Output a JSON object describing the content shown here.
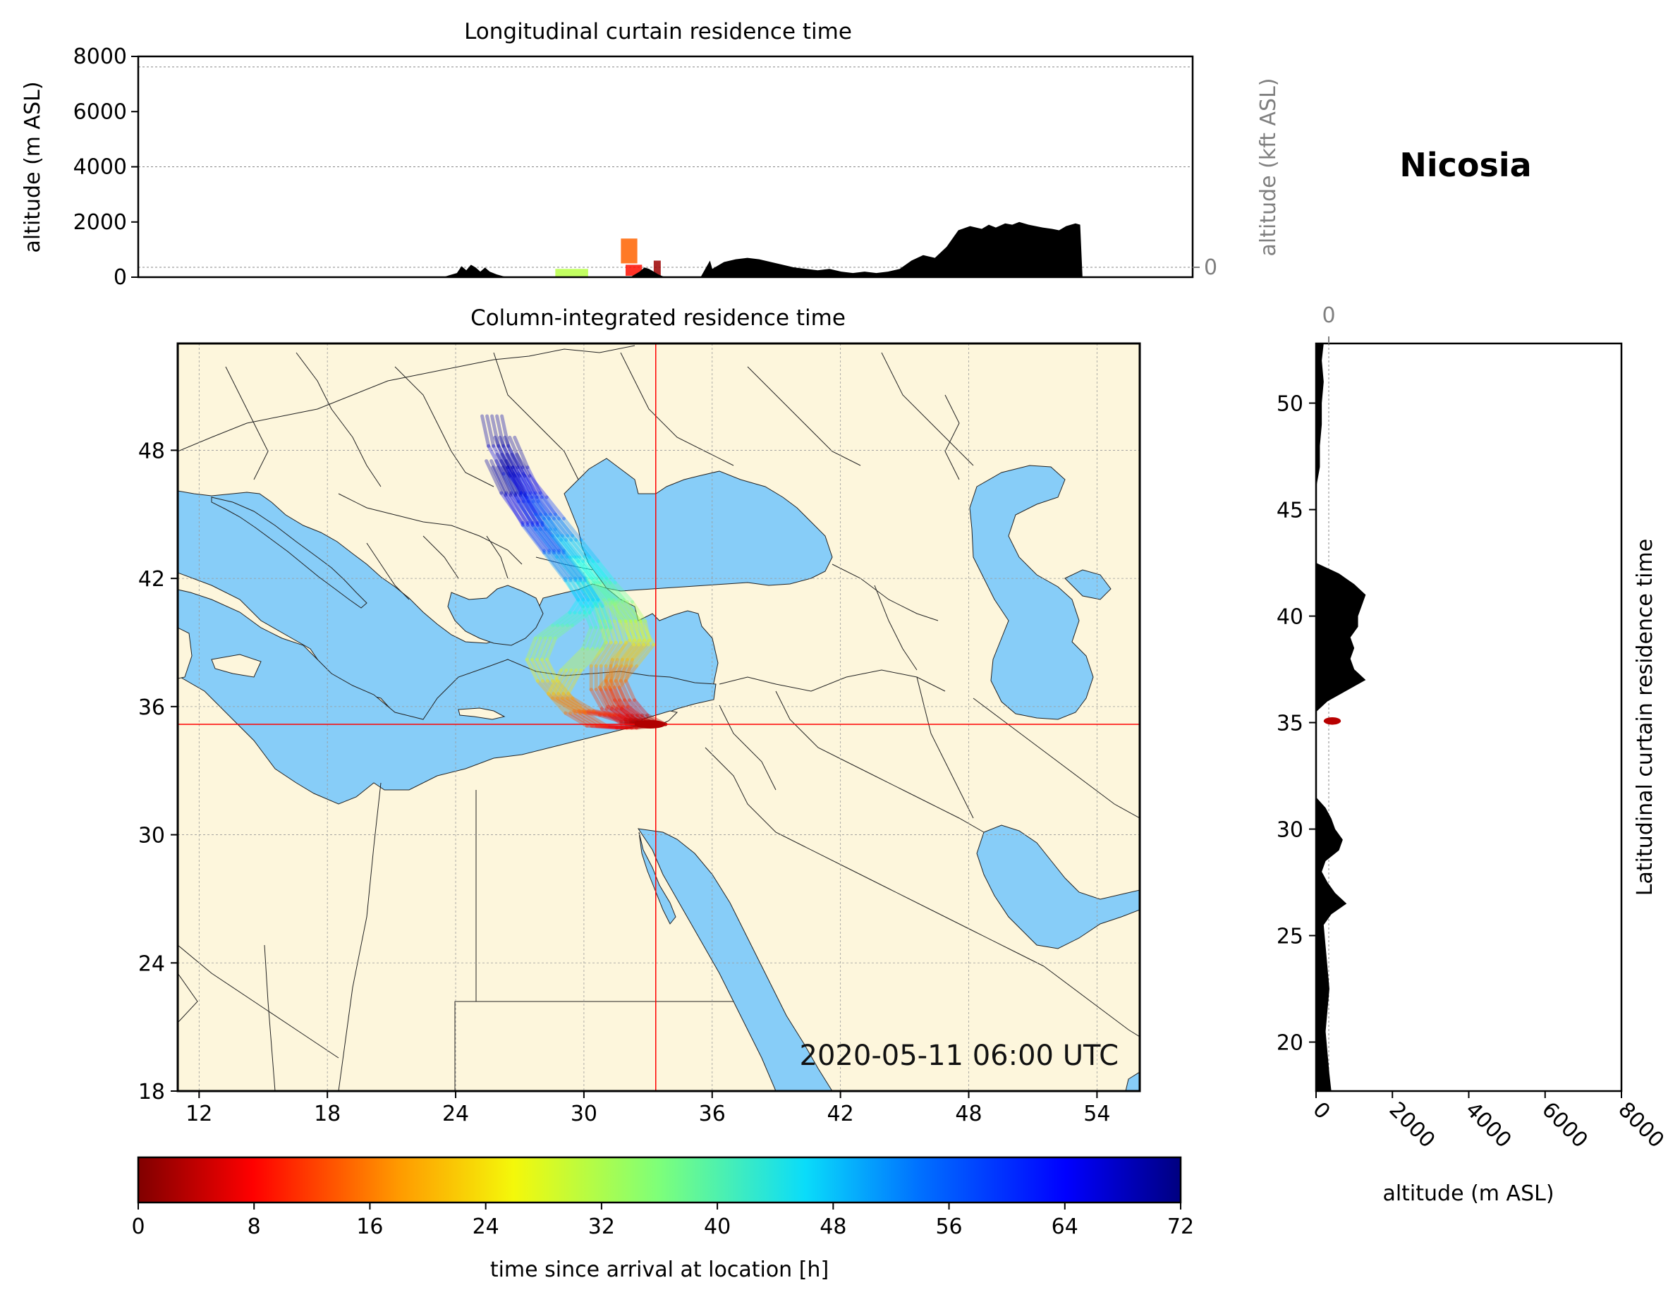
{
  "station": {
    "name": "Nicosia",
    "lat": 35.17,
    "lon": 33.36
  },
  "timestamp": "2020-05-11 06:00 UTC",
  "colors": {
    "ocean": "#87cdf8",
    "land": "#fdf6dc",
    "marker": "#ff0000",
    "terrain": "#000000"
  },
  "chart_data": [
    {
      "type": "area",
      "title": "Longitudinal curtain residence time",
      "ylabel": "altitude (m ASL)",
      "ylabel_right": "altitude (kft ASL)",
      "ylim": [
        0,
        8000
      ],
      "xlim": [
        11,
        56
      ],
      "yticks": [
        "0",
        "2000",
        "4000",
        "6000",
        "8000"
      ],
      "yticks_right": [
        "0",
        "50",
        "100"
      ],
      "terrain_profile": {
        "x": [
          24.0,
          24.6,
          24.8,
          25.0,
          25.2,
          25.4,
          25.6,
          25.8,
          26.0,
          26.3,
          26.6,
          27.0,
          30.0,
          32.0,
          32.4,
          32.6,
          32.8,
          33.0,
          33.2,
          33.4,
          33.6,
          35.0,
          35.4,
          35.5,
          35.8,
          36.0,
          36.5,
          37.0,
          37.5,
          38.0,
          38.5,
          39.0,
          39.5,
          40.0,
          40.5,
          41.0,
          41.5,
          42.0,
          42.5,
          43.0,
          43.5,
          44.0,
          44.5,
          45.0,
          45.5,
          46.0,
          46.5,
          47.0,
          47.3,
          47.6,
          48.0,
          48.3,
          48.6,
          49.0,
          49.3,
          49.6,
          50.0,
          50.3,
          50.6,
          51.0,
          51.2,
          51.3
        ],
        "y": [
          0,
          150,
          400,
          250,
          450,
          350,
          200,
          350,
          200,
          100,
          30,
          0,
          0,
          0,
          200,
          350,
          300,
          200,
          100,
          30,
          0,
          0,
          600,
          300,
          450,
          550,
          650,
          700,
          650,
          550,
          450,
          350,
          300,
          250,
          300,
          200,
          150,
          200,
          150,
          200,
          300,
          600,
          800,
          700,
          1100,
          1700,
          1850,
          1750,
          1900,
          1800,
          1950,
          1900,
          2000,
          1900,
          1850,
          1800,
          1750,
          1700,
          1850,
          1950,
          1900,
          0
        ]
      },
      "residence_patches": [
        {
          "x": [
            28.8,
            30.2
          ],
          "y": [
            0,
            300
          ],
          "hours": 32
        },
        {
          "x": [
            31.6,
            32.3
          ],
          "y": [
            500,
            1400
          ],
          "hours": 16
        },
        {
          "x": [
            31.8,
            32.5
          ],
          "y": [
            50,
            450
          ],
          "hours": 10
        },
        {
          "x": [
            33.0,
            33.3
          ],
          "y": [
            0,
            600
          ],
          "hours": 2
        }
      ]
    },
    {
      "type": "heatmap",
      "title": "Column-integrated residence time",
      "xlim": [
        11,
        56
      ],
      "ylim": [
        18,
        53
      ],
      "xticks": [
        "12",
        "18",
        "24",
        "30",
        "36",
        "42",
        "48",
        "54"
      ],
      "yticks": [
        "18",
        "24",
        "30",
        "36",
        "42",
        "48"
      ],
      "grid": true,
      "trajectories": [
        {
          "lon": [
            33.36,
            32.2,
            31.3,
            30.8,
            30.8,
            31.5,
            31.2,
            31.0,
            30.2,
            29.2,
            28.2,
            27.4,
            26.7,
            26.0,
            25.7
          ],
          "lat": [
            35.17,
            35.2,
            35.9,
            36.8,
            37.9,
            39.0,
            40.0,
            40.8,
            41.8,
            43.0,
            44.3,
            45.6,
            46.9,
            48.2,
            49.6
          ]
        },
        {
          "lon": [
            33.36,
            32.2,
            31.2,
            30.0,
            29.0,
            28.3,
            27.8,
            28.2,
            29.0,
            29.8,
            30.2,
            29.6,
            28.6,
            27.6,
            26.6,
            25.9
          ],
          "lat": [
            35.17,
            35.3,
            35.6,
            35.8,
            36.4,
            37.2,
            38.2,
            39.2,
            39.8,
            40.4,
            41.0,
            42.0,
            43.3,
            44.6,
            46.0,
            47.5
          ]
        },
        {
          "lon": [
            33.36,
            32.5,
            31.9,
            31.5,
            31.8,
            32.6,
            32.4,
            31.8,
            31.0,
            30.2,
            29.4,
            28.6,
            27.8,
            27.0,
            26.4
          ],
          "lat": [
            35.17,
            35.6,
            36.3,
            37.2,
            38.2,
            39.1,
            40.0,
            40.9,
            41.8,
            42.8,
            43.8,
            44.8,
            45.8,
            46.8,
            47.8
          ]
        },
        {
          "lon": [
            33.36,
            32.0,
            30.6,
            29.6,
            28.8,
            29.4,
            30.4,
            30.8,
            30.4,
            29.6,
            28.6,
            27.6,
            26.8,
            26.2
          ],
          "lat": [
            35.17,
            35.0,
            35.1,
            35.7,
            36.6,
            37.7,
            38.7,
            39.7,
            40.7,
            41.9,
            43.2,
            44.5,
            45.9,
            47.2
          ]
        },
        {
          "lon": [
            33.36,
            32.4,
            31.6,
            31.2,
            32.0,
            32.8,
            32.2,
            31.4,
            30.6,
            29.8,
            29.0,
            28.2,
            27.5,
            26.9,
            26.3
          ],
          "lat": [
            35.17,
            35.4,
            36.0,
            36.9,
            37.9,
            38.9,
            40.0,
            41.0,
            42.0,
            43.0,
            44.0,
            45.0,
            46.0,
            47.2,
            48.6
          ]
        }
      ]
    },
    {
      "type": "area",
      "title": "Latitudinal curtain residence time",
      "xlabel": "altitude (m ASL)",
      "ylim": [
        17.7,
        52.8
      ],
      "xlim": [
        0,
        8000
      ],
      "xticks": [
        "0",
        "2000",
        "4000",
        "6000",
        "8000"
      ],
      "xticks_top": [
        "0",
        "50",
        "100"
      ],
      "yticks": [
        "20",
        "25",
        "30",
        "35",
        "40",
        "45",
        "50"
      ],
      "terrain_profile": {
        "lat": [
          17.7,
          18.5,
          19.5,
          20.5,
          21.5,
          22.5,
          23.5,
          24.5,
          25.5,
          26.0,
          26.5,
          27.0,
          27.5,
          28.0,
          28.5,
          29.0,
          29.5,
          30.0,
          30.5,
          31.0,
          31.5,
          32.0,
          32.5,
          33.0,
          33.5,
          34.0,
          34.5,
          35.0,
          35.5,
          36.0,
          36.5,
          37.0,
          37.5,
          38.0,
          38.5,
          39.0,
          39.5,
          40.0,
          40.5,
          41.0,
          41.5,
          42.0,
          42.5,
          43.0,
          44.0,
          45.0,
          46.0,
          47.0,
          48.0,
          49.0,
          50.0,
          51.0,
          52.0,
          52.8
        ],
        "alt": [
          400,
          350,
          300,
          250,
          300,
          350,
          300,
          250,
          200,
          400,
          800,
          500,
          300,
          150,
          250,
          600,
          700,
          500,
          400,
          250,
          0,
          0,
          0,
          0,
          0,
          0,
          0,
          0,
          0,
          300,
          800,
          1300,
          1000,
          900,
          1000,
          900,
          1100,
          1100,
          1200,
          1300,
          1000,
          600,
          0,
          0,
          0,
          0,
          0,
          100,
          100,
          150,
          150,
          200,
          150,
          200
        ]
      },
      "residence_patches": [
        {
          "lat": [
            34.9,
            35.25
          ],
          "alt": [
            200,
            650
          ],
          "hours": 4
        }
      ]
    },
    {
      "type": "heatmap",
      "title": "colorbar",
      "xlabel": "time since arrival at location [h]",
      "range": [
        0,
        72
      ],
      "ticks": [
        "0",
        "8",
        "16",
        "24",
        "32",
        "40",
        "48",
        "56",
        "64",
        "72"
      ],
      "colormap": "jet_r"
    }
  ]
}
